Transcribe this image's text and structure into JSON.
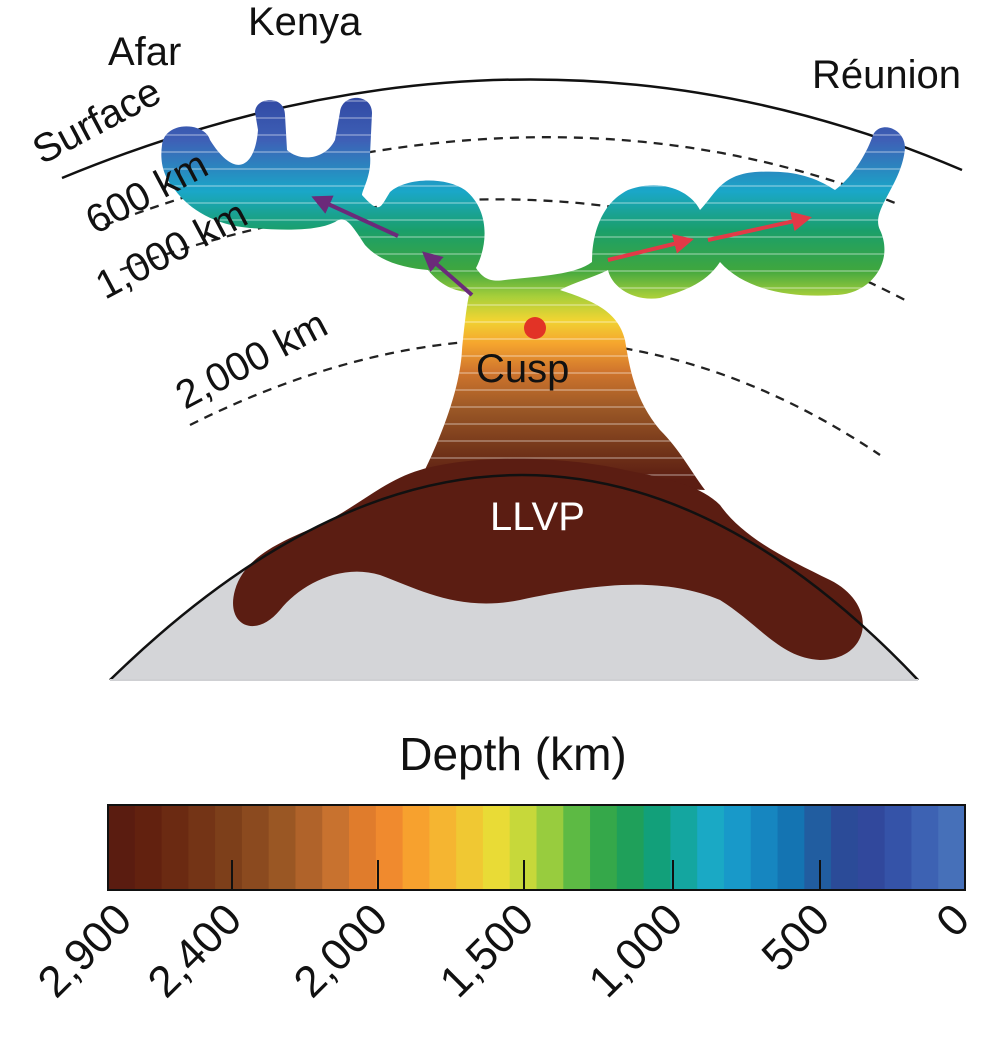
{
  "labels": {
    "afar": "Afar",
    "kenya": "Kenya",
    "reunion": "Réunion",
    "surface": "Surface",
    "d600": "600 km",
    "d1000": "1,000 km",
    "d2000": "2,000 km",
    "cusp": "Cusp",
    "llvp": "LLVP"
  },
  "colorbar": {
    "title": "Depth (km)",
    "ticks": [
      "2,900",
      "2,400",
      "2,000",
      "1,500",
      "1,000",
      "500",
      "0"
    ],
    "colors": [
      "#5a1c10",
      "#62210f",
      "#6b2a12",
      "#743416",
      "#7d3f1a",
      "#8b4a1f",
      "#9a5724",
      "#b0632a",
      "#c8722f",
      "#e07c2c",
      "#f08a2e",
      "#f7a12e",
      "#f5b531",
      "#f0c833",
      "#e9db36",
      "#c7d83a",
      "#98cc3e",
      "#5dba44",
      "#35a84a",
      "#1fa05a",
      "#12a07a",
      "#14a6a0",
      "#1aa9c5",
      "#1899c9",
      "#1686c0",
      "#1474b2",
      "#215da0",
      "#2b4b98",
      "#31489c",
      "#3553a8",
      "#3d62b3",
      "#4670b9"
    ]
  },
  "colors": {
    "core": "#d4d5d8",
    "llvp": "#5b1d12",
    "cusp_dot": "#e23326",
    "left_arrows": "#6b2a7a",
    "right_arrows": "#e23a47"
  }
}
